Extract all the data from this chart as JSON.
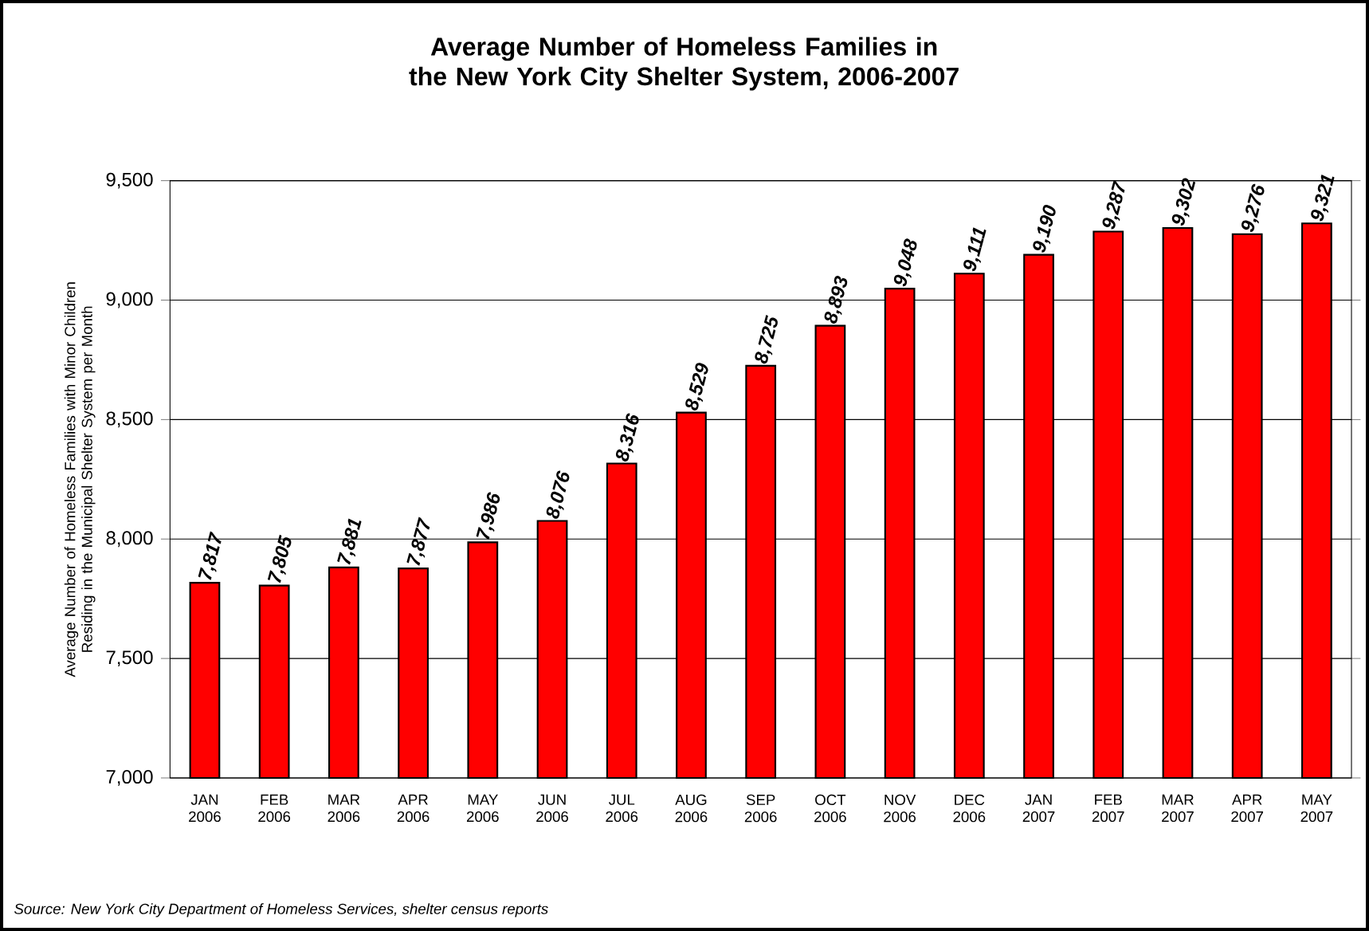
{
  "chart_data": {
    "type": "bar",
    "title": "Average Number of Homeless Families in the New York City Shelter System, 2006-2007",
    "ylabel": "Average Number of Homeless Families with Minor Children Residing in the Municipal Shelter System per Month",
    "categories": [
      "JAN 2006",
      "FEB 2006",
      "MAR 2006",
      "APR 2006",
      "MAY 2006",
      "JUN 2006",
      "JUL 2006",
      "AUG 2006",
      "SEP 2006",
      "OCT 2006",
      "NOV 2006",
      "DEC 2006",
      "JAN 2007",
      "FEB 2007",
      "MAR 2007",
      "APR 2007",
      "MAY 2007"
    ],
    "values": [
      7817,
      7805,
      7881,
      7877,
      7986,
      8076,
      8316,
      8529,
      8725,
      8893,
      9048,
      9111,
      9190,
      9287,
      9302,
      9276,
      9321
    ],
    "value_labels": [
      "7,817",
      "7,805",
      "7,881",
      "7,877",
      "7,986",
      "8,076",
      "8,316",
      "8,529",
      "8,725",
      "8,893",
      "9,048",
      "9,111",
      "9,190",
      "9,287",
      "9,302",
      "9,276",
      "9,321"
    ],
    "color": "#ff0000",
    "ylim": [
      7000,
      9500
    ],
    "yticks": [
      {
        "value": 7000,
        "label": "7,000"
      },
      {
        "value": 7500,
        "label": "7,500"
      },
      {
        "value": 8000,
        "label": "8,000"
      },
      {
        "value": 8500,
        "label": "8,500"
      },
      {
        "value": 9000,
        "label": "9,000"
      },
      {
        "value": 9500,
        "label": "9,500"
      }
    ],
    "grid": "y",
    "annotations": [
      "Source:  New York City Department of Homeless Services, shelter census reports"
    ]
  }
}
